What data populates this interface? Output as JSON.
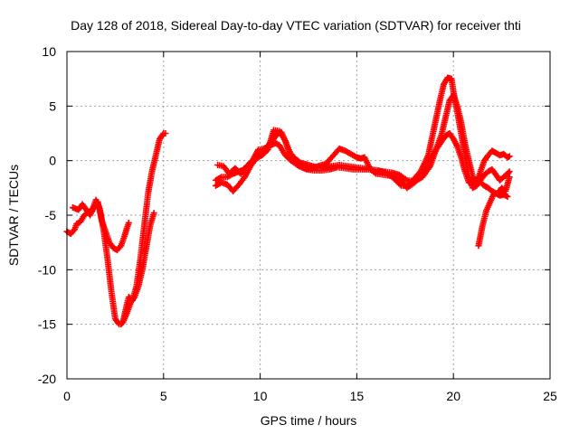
{
  "chart_data": {
    "type": "scatter",
    "title": "Day 128 of 2018, Sidereal Day-to-day VTEC variation (SDTVAR) for receiver thti",
    "xlabel": "GPS time / hours",
    "ylabel": "SDTVAR / TECUs",
    "xlim": [
      0,
      25
    ],
    "ylim": [
      -20,
      10
    ],
    "xticks": [
      0,
      5,
      10,
      15,
      20,
      25
    ],
    "yticks": [
      -20,
      -15,
      -10,
      -5,
      0,
      5,
      10
    ],
    "grid": true,
    "marker": "plus",
    "color": "#ff0000",
    "series": [
      {
        "x": [
          0.0,
          0.2,
          0.4,
          0.5,
          0.7,
          0.9,
          1.1,
          1.3,
          1.5,
          1.7,
          1.9,
          2.1,
          2.3,
          2.5,
          2.7,
          2.8,
          2.9,
          3.0,
          3.1,
          3.2,
          3.4,
          3.6,
          3.8,
          4.0,
          4.2,
          4.4,
          4.6,
          4.8,
          5.0,
          5.1
        ],
        "y": [
          -6.5,
          -6.7,
          -6.3,
          -5.8,
          -5.6,
          -5.0,
          -4.7,
          -4.6,
          -3.6,
          -4.4,
          -6.4,
          -9.0,
          -12.0,
          -14.5,
          -15.0,
          -15.0,
          -14.8,
          -14.0,
          -13.2,
          -12.5,
          -12.8,
          -11.5,
          -9.0,
          -6.0,
          -3.0,
          -1.0,
          0.5,
          2.0,
          2.5,
          2.5
        ]
      },
      {
        "x": [
          0.3,
          0.6,
          0.8,
          1.0,
          1.2,
          1.4,
          1.6,
          1.8,
          2.0,
          2.2,
          2.4,
          2.6,
          2.8,
          3.0,
          3.1,
          3.2
        ],
        "y": [
          -4.3,
          -4.5,
          -4.0,
          -4.5,
          -5.0,
          -4.2,
          -3.8,
          -5.5,
          -6.5,
          -7.5,
          -8.0,
          -8.2,
          -7.8,
          -6.8,
          -6.2,
          -5.7
        ]
      },
      {
        "x": [
          2.9,
          3.1,
          3.3,
          3.5,
          3.7,
          3.9,
          4.1,
          4.3,
          4.5
        ],
        "y": [
          -14.8,
          -14.0,
          -13.0,
          -12.5,
          -11.5,
          -10.0,
          -8.0,
          -6.0,
          -4.8
        ]
      },
      {
        "x": [
          7.7,
          8.0,
          8.3,
          8.6,
          8.9,
          9.2,
          9.5,
          9.8,
          10.1,
          10.4,
          10.7,
          10.9,
          11.1,
          11.3,
          11.5,
          11.8,
          12.1,
          12.5,
          12.9,
          13.3,
          13.7,
          14.1,
          14.5,
          14.9,
          15.3,
          15.7,
          16.1,
          16.5,
          16.9,
          17.3,
          17.6,
          17.9,
          18.3,
          18.7,
          19.0,
          19.3,
          19.5,
          19.7,
          19.9,
          20.0,
          20.2,
          20.4,
          20.6,
          20.8,
          21.0,
          21.2,
          21.4,
          21.6,
          21.8,
          22.0,
          22.2,
          22.4,
          22.6,
          22.8,
          22.9
        ],
        "y": [
          -1.8,
          -1.5,
          -1.5,
          -1.2,
          -1.0,
          -0.8,
          -0.3,
          0.3,
          0.8,
          1.4,
          2.0,
          2.5,
          2.6,
          1.8,
          0.8,
          0.2,
          -0.2,
          -0.4,
          -0.6,
          -0.7,
          -0.5,
          -0.4,
          -0.5,
          -0.6,
          -0.7,
          -0.8,
          -0.9,
          -1.1,
          -1.6,
          -2.3,
          -2.3,
          -1.8,
          -1.0,
          0.5,
          3.0,
          5.5,
          7.0,
          7.6,
          7.5,
          6.3,
          4.5,
          2.5,
          0.5,
          -1.5,
          -2.5,
          -2.3,
          -1.8,
          -1.3,
          -1.0,
          -0.8,
          -1.3,
          -1.8,
          -1.5,
          -1.2,
          -1.0
        ]
      },
      {
        "x": [
          7.8,
          8.1,
          8.4,
          8.7,
          9.0,
          9.3,
          9.6,
          9.9,
          10.2,
          10.5,
          10.8,
          11.0,
          11.3,
          11.6,
          12.0,
          12.4,
          12.8,
          13.2,
          13.6,
          14.0,
          14.4,
          14.8,
          15.2,
          15.6,
          16.0,
          16.4,
          16.8,
          17.2,
          17.6,
          18.0,
          18.4,
          18.8,
          19.1,
          19.4,
          19.6,
          19.8,
          20.0,
          20.2,
          20.4,
          20.6,
          20.8,
          21.0,
          21.2,
          21.4,
          21.6,
          21.8,
          22.0,
          22.2,
          22.4,
          22.6,
          22.8,
          22.9
        ],
        "y": [
          -0.4,
          -0.5,
          -1.2,
          -0.7,
          -1.2,
          -0.5,
          0.0,
          1.0,
          1.1,
          1.4,
          1.6,
          1.4,
          0.5,
          0.0,
          -0.5,
          -0.8,
          -0.9,
          -0.9,
          -0.8,
          -0.6,
          -0.7,
          -0.8,
          -0.8,
          -0.8,
          -0.9,
          -1.0,
          -1.1,
          -1.3,
          -1.8,
          -1.9,
          -1.5,
          -0.5,
          1.0,
          2.5,
          4.0,
          5.5,
          6.0,
          5.0,
          3.5,
          1.5,
          0.0,
          -1.5,
          -2.0,
          -1.0,
          0.0,
          0.5,
          0.9,
          0.7,
          0.5,
          0.6,
          0.3,
          0.4
        ]
      },
      {
        "x": [
          7.7,
          8.0,
          8.3,
          8.6,
          8.9,
          9.2,
          9.5,
          9.8,
          10.1,
          10.4,
          10.7,
          11.0,
          11.3,
          11.6,
          11.9,
          12.2,
          12.6,
          13.0,
          13.4,
          13.8,
          14.1,
          14.4,
          14.7,
          15.0,
          15.2,
          15.4,
          15.7,
          16.0,
          16.4,
          16.8,
          17.2,
          17.6,
          18.0,
          18.4,
          18.8,
          19.1,
          19.4,
          19.6,
          19.8,
          20.0,
          20.2,
          20.4,
          20.6,
          20.8,
          21.0,
          21.2,
          21.4,
          21.6,
          21.8,
          22.0,
          22.2,
          22.4,
          22.6,
          22.8
        ],
        "y": [
          -2.3,
          -2.0,
          -2.2,
          -2.8,
          -2.2,
          -1.5,
          -0.5,
          0.2,
          0.5,
          1.0,
          2.8,
          2.7,
          1.8,
          0.5,
          -0.3,
          -0.6,
          -0.8,
          -0.5,
          -0.3,
          0.5,
          1.1,
          0.9,
          0.6,
          0.3,
          0.2,
          0.3,
          -0.8,
          -1.2,
          -1.3,
          -1.4,
          -1.6,
          -2.5,
          -2.0,
          -1.0,
          0.0,
          1.0,
          1.8,
          2.3,
          2.5,
          2.0,
          1.3,
          0.3,
          -1.0,
          -2.0,
          -2.2,
          -1.8,
          -2.0,
          -2.3,
          -2.5,
          -2.8,
          -3.0,
          -3.2,
          -3.1,
          -3.3
        ]
      },
      {
        "x": [
          21.3,
          21.5,
          21.7,
          21.9,
          22.1,
          22.3,
          22.5,
          22.7,
          22.9
        ],
        "y": [
          -7.8,
          -6.0,
          -4.6,
          -3.8,
          -3.0,
          -3.0,
          -2.5,
          -2.8,
          -1.5
        ]
      }
    ]
  }
}
